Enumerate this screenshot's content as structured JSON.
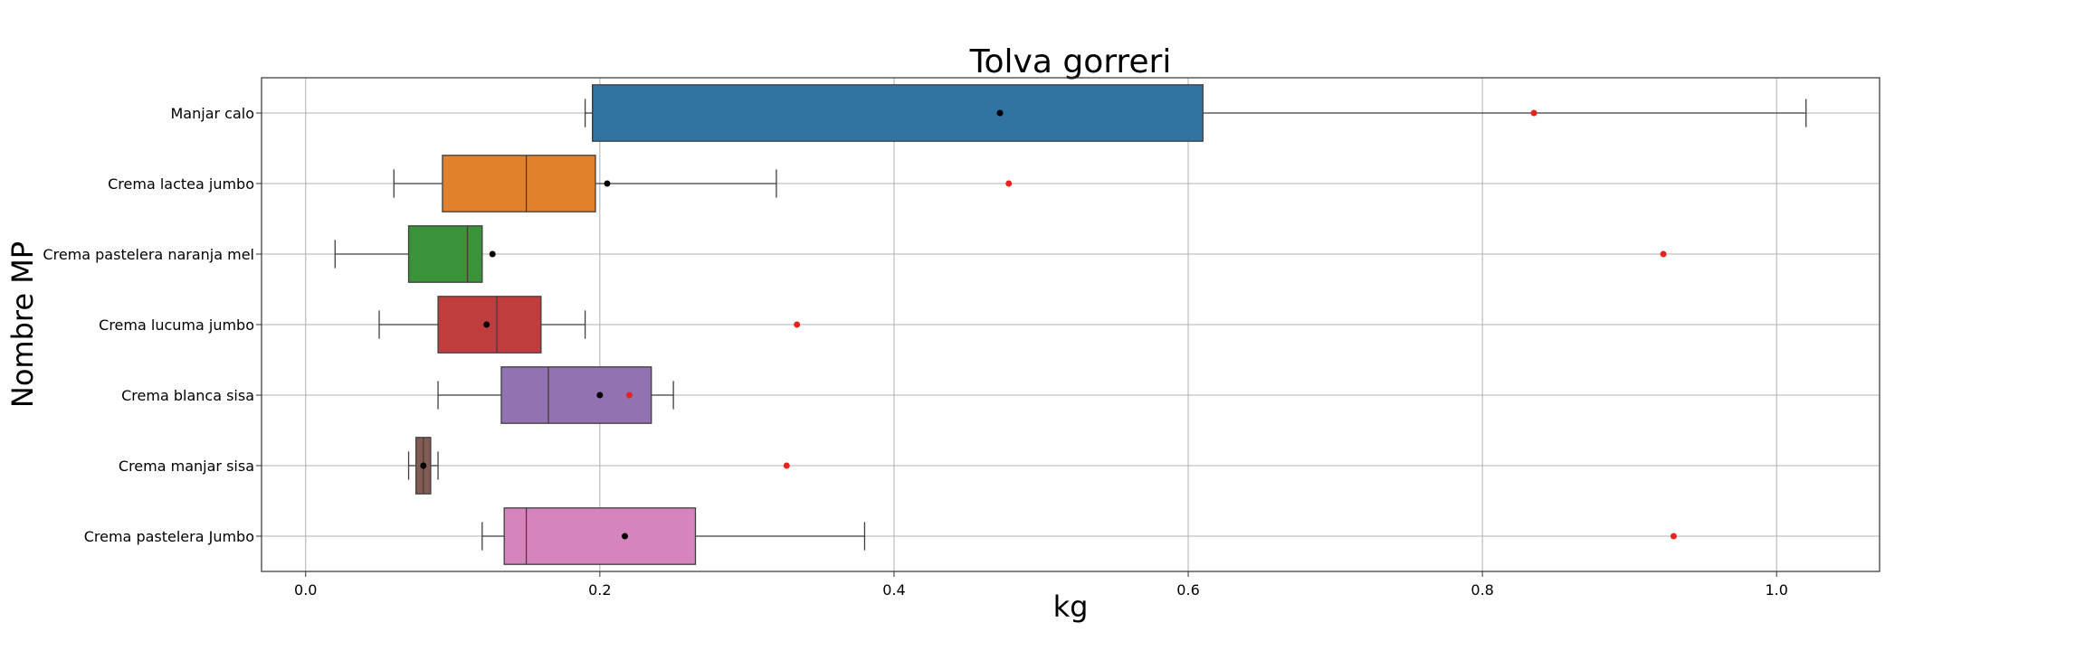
{
  "chart_data": {
    "type": "box",
    "orientation": "horizontal",
    "title": "Tolva gorreri",
    "xlabel": "kg",
    "ylabel": "Nombre MP",
    "xlim": [
      -0.03,
      1.07
    ],
    "xticks": [
      0.0,
      0.2,
      0.4,
      0.6,
      0.8,
      1.0
    ],
    "xtick_labels": [
      "0.0",
      "0.2",
      "0.4",
      "0.6",
      "0.8",
      "1.0"
    ],
    "grid": true,
    "categories": [
      "Manjar calo",
      "Crema lactea jumbo",
      "Crema pastelera naranja mel",
      "Crema lucuma jumbo",
      "Crema blanca sisa",
      "Crema manjar sisa",
      "Crema pastelera Jumbo"
    ],
    "boxes": [
      {
        "category": "Manjar calo",
        "whisker_low": 0.19,
        "q1": 0.195,
        "median": 0.195,
        "q3": 0.61,
        "whisker_high": 1.02,
        "mean": 0.472,
        "red_point": 0.835,
        "color": "#3274a1"
      },
      {
        "category": "Crema lactea jumbo",
        "whisker_low": 0.06,
        "q1": 0.093,
        "median": 0.15,
        "q3": 0.197,
        "whisker_high": 0.32,
        "mean": 0.205,
        "red_point": 0.478,
        "color": "#e1812c"
      },
      {
        "category": "Crema pastelera naranja mel",
        "whisker_low": 0.02,
        "q1": 0.07,
        "median": 0.11,
        "q3": 0.12,
        "whisker_high": 0.12,
        "mean": 0.127,
        "red_point": 0.923,
        "color": "#3a923a"
      },
      {
        "category": "Crema lucuma jumbo",
        "whisker_low": 0.05,
        "q1": 0.09,
        "median": 0.13,
        "q3": 0.16,
        "whisker_high": 0.19,
        "mean": 0.123,
        "red_point": 0.334,
        "color": "#c03d3e"
      },
      {
        "category": "Crema blanca sisa",
        "whisker_low": 0.09,
        "q1": 0.133,
        "median": 0.165,
        "q3": 0.235,
        "whisker_high": 0.25,
        "mean": 0.2,
        "red_point": 0.22,
        "color": "#9372b2"
      },
      {
        "category": "Crema manjar sisa",
        "whisker_low": 0.07,
        "q1": 0.075,
        "median": 0.08,
        "q3": 0.085,
        "whisker_high": 0.09,
        "mean": 0.08,
        "red_point": 0.327,
        "color": "#845b53"
      },
      {
        "category": "Crema pastelera Jumbo",
        "whisker_low": 0.12,
        "q1": 0.135,
        "median": 0.15,
        "q3": 0.265,
        "whisker_high": 0.38,
        "mean": 0.217,
        "red_point": 0.93,
        "color": "#d684bd"
      }
    ]
  }
}
